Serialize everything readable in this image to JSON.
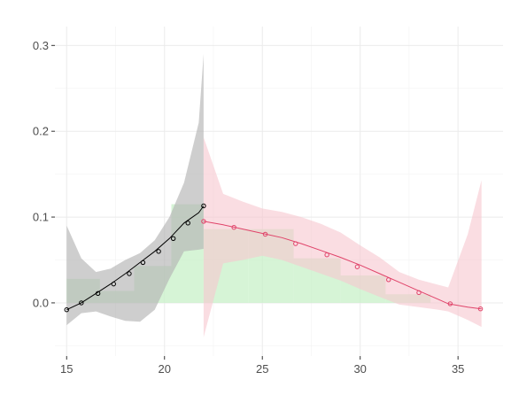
{
  "chart_data": {
    "type": "line",
    "title": "",
    "xlabel": "",
    "ylabel": "",
    "xlim": [
      14.4,
      37.3
    ],
    "ylim": [
      -0.062,
      0.322
    ],
    "x_ticks": [
      15,
      20,
      25,
      30,
      35
    ],
    "y_ticks": [
      0.0,
      0.1,
      0.2,
      0.3
    ],
    "x_tick_labels": [
      "15",
      "20",
      "25",
      "30",
      "35"
    ],
    "y_tick_labels": [
      "0.0",
      "0.1",
      "0.2",
      "0.3"
    ],
    "grid": true,
    "legend": "none",
    "histogram": {
      "color": "#c8f0c8",
      "bins": [
        {
          "x0": 15.0,
          "x1": 16.7,
          "value": 0.028
        },
        {
          "x0": 16.7,
          "x1": 18.45,
          "value": 0.014
        },
        {
          "x0": 18.45,
          "x1": 20.35,
          "value": 0.043
        },
        {
          "x0": 20.35,
          "x1": 22.0,
          "value": 0.115
        },
        {
          "x0": 22.0,
          "x1": 24.3,
          "value": 0.086
        },
        {
          "x0": 24.3,
          "x1": 26.6,
          "value": 0.086
        },
        {
          "x0": 26.6,
          "x1": 29.0,
          "value": 0.052
        },
        {
          "x0": 29.0,
          "x1": 31.3,
          "value": 0.032
        },
        {
          "x0": 31.3,
          "x1": 33.6,
          "value": 0.01
        },
        {
          "x0": 33.6,
          "x1": 35.9,
          "value": 0.0
        }
      ]
    },
    "series": [
      {
        "color": "#000000",
        "band_color": "#b3b3b3",
        "x": [
          15.0,
          15.75,
          16.5,
          17.25,
          18.0,
          18.75,
          19.5,
          20.25,
          21.0,
          21.75,
          22.0
        ],
        "values": [
          -0.008,
          0.0,
          0.011,
          0.022,
          0.034,
          0.047,
          0.06,
          0.075,
          0.093,
          0.105,
          0.113
        ],
        "lower": [
          -0.026,
          -0.012,
          -0.01,
          -0.016,
          -0.021,
          -0.022,
          -0.008,
          0.028,
          0.06,
          0.062,
          0.063
        ],
        "upper": [
          0.09,
          0.052,
          0.036,
          0.04,
          0.05,
          0.058,
          0.073,
          0.1,
          0.14,
          0.21,
          0.29
        ],
        "marker_x": [
          15.0,
          15.75,
          16.6,
          17.4,
          18.2,
          18.9,
          19.7,
          20.45,
          21.2,
          22.0
        ],
        "marker_values": [
          -0.008,
          0.0,
          0.011,
          0.022,
          0.034,
          0.047,
          0.06,
          0.075,
          0.093,
          0.113
        ]
      },
      {
        "color": "#e0446a",
        "band_color": "#f7c6cf",
        "x": [
          22.0,
          23.0,
          24.0,
          25.0,
          26.0,
          27.0,
          28.0,
          29.0,
          30.0,
          31.0,
          32.0,
          33.0,
          34.0,
          34.5,
          35.5,
          36.2
        ],
        "values": [
          0.095,
          0.091,
          0.086,
          0.081,
          0.076,
          0.069,
          0.061,
          0.053,
          0.044,
          0.034,
          0.024,
          0.014,
          0.004,
          -0.001,
          -0.005,
          -0.007
        ],
        "lower": [
          -0.04,
          0.046,
          0.05,
          0.055,
          0.05,
          0.042,
          0.034,
          0.026,
          0.016,
          0.007,
          -0.002,
          -0.005,
          -0.008,
          -0.01,
          -0.02,
          -0.028
        ],
        "upper": [
          0.193,
          0.127,
          0.118,
          0.11,
          0.106,
          0.1,
          0.092,
          0.082,
          0.067,
          0.053,
          0.036,
          0.027,
          0.021,
          0.018,
          0.08,
          0.143
        ],
        "marker_x": [
          22.0,
          23.55,
          25.15,
          26.7,
          28.3,
          29.85,
          31.45,
          33.0,
          34.6,
          36.15
        ],
        "marker_values": [
          0.095,
          0.088,
          0.08,
          0.069,
          0.056,
          0.042,
          0.027,
          0.012,
          -0.001,
          -0.007
        ]
      }
    ]
  }
}
